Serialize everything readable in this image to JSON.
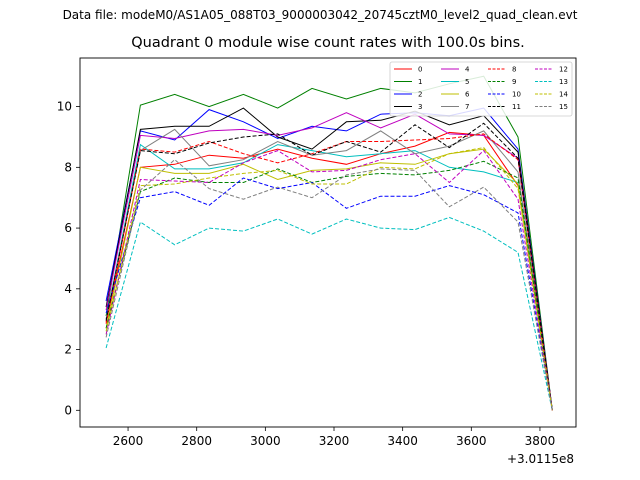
{
  "header": {
    "suptitle": "Data file: modeM0/AS1A05_088T03_9000003042_20745cztM0_level2_quad_clean.evt"
  },
  "chart_data": {
    "type": "line",
    "title": "Quadrant 0 module wise count rates with 100.0s bins.",
    "xlabel": "",
    "ylabel": "",
    "x_offset_label": "+3.0115e8",
    "xlim": [
      2460,
      3905
    ],
    "ylim": [
      -0.55,
      11.6
    ],
    "xticks": [
      2600,
      2800,
      3000,
      3200,
      3400,
      3600,
      3800
    ],
    "yticks": [
      0,
      2,
      4,
      6,
      8,
      10
    ],
    "grid": false,
    "legend_placement": "top-right",
    "x": [
      2536,
      2636,
      2736,
      2836,
      2936,
      3036,
      3136,
      3236,
      3336,
      3436,
      3536,
      3636,
      3736,
      3836
    ],
    "series": [
      {
        "name": "0",
        "color": "#ff0000",
        "dash": "solid",
        "values": [
          2.9,
          8.0,
          8.1,
          8.4,
          8.3,
          8.6,
          8.3,
          8.1,
          8.45,
          8.7,
          9.15,
          9.05,
          7.4,
          0
        ]
      },
      {
        "name": "1",
        "color": "#008000",
        "dash": "solid",
        "values": [
          3.1,
          10.05,
          10.4,
          10.0,
          10.4,
          9.95,
          10.6,
          10.25,
          10.6,
          10.45,
          10.75,
          11.0,
          9.0,
          0
        ]
      },
      {
        "name": "2",
        "color": "#0000ff",
        "dash": "solid",
        "values": [
          3.6,
          9.2,
          8.9,
          9.9,
          9.5,
          8.95,
          9.35,
          9.2,
          9.75,
          9.8,
          9.7,
          9.95,
          8.6,
          0
        ]
      },
      {
        "name": "3",
        "color": "#000000",
        "dash": "solid",
        "values": [
          3.4,
          9.25,
          9.35,
          9.35,
          9.95,
          9.0,
          8.6,
          9.5,
          9.55,
          9.85,
          9.4,
          9.7,
          8.5,
          0
        ]
      },
      {
        "name": "4",
        "color": "#bf00bf",
        "dash": "solid",
        "values": [
          3.3,
          9.05,
          8.95,
          9.2,
          9.25,
          9.05,
          9.3,
          9.8,
          9.3,
          9.75,
          9.1,
          9.05,
          8.3,
          0
        ]
      },
      {
        "name": "5",
        "color": "#00bfbf",
        "dash": "solid",
        "values": [
          3.0,
          8.75,
          7.95,
          7.95,
          8.15,
          8.75,
          8.55,
          8.35,
          8.45,
          8.55,
          8.0,
          7.85,
          7.5,
          0
        ]
      },
      {
        "name": "6",
        "color": "#bfbf00",
        "dash": "solid",
        "values": [
          2.7,
          8.0,
          7.8,
          7.8,
          8.1,
          7.6,
          7.9,
          7.95,
          8.15,
          8.1,
          8.45,
          8.6,
          7.45,
          0
        ]
      },
      {
        "name": "7",
        "color": "#808080",
        "dash": "solid",
        "values": [
          3.0,
          8.55,
          9.25,
          8.05,
          8.25,
          8.85,
          8.4,
          8.55,
          9.2,
          8.45,
          8.7,
          9.2,
          7.85,
          0
        ]
      },
      {
        "name": "8",
        "color": "#ff0000",
        "dash": "dashed",
        "values": [
          2.85,
          8.6,
          8.5,
          8.85,
          8.45,
          8.15,
          8.45,
          8.85,
          8.85,
          8.9,
          8.95,
          9.1,
          8.25,
          0
        ]
      },
      {
        "name": "9",
        "color": "#008000",
        "dash": "dashed",
        "values": [
          2.7,
          7.2,
          7.65,
          7.5,
          7.5,
          7.95,
          7.5,
          7.7,
          7.8,
          7.75,
          7.9,
          8.2,
          7.65,
          0
        ]
      },
      {
        "name": "10",
        "color": "#0000ff",
        "dash": "dashed",
        "values": [
          3.2,
          7.0,
          7.2,
          6.75,
          7.65,
          7.3,
          7.5,
          6.65,
          7.05,
          7.05,
          7.4,
          7.1,
          6.5,
          0
        ]
      },
      {
        "name": "11",
        "color": "#000000",
        "dash": "dashed",
        "values": [
          2.95,
          8.55,
          8.45,
          8.8,
          9.0,
          9.1,
          8.4,
          8.85,
          8.5,
          9.4,
          8.65,
          9.45,
          8.3,
          0
        ]
      },
      {
        "name": "12",
        "color": "#bf00bf",
        "dash": "dashed",
        "values": [
          2.5,
          7.6,
          7.55,
          7.5,
          8.15,
          8.55,
          7.85,
          7.9,
          8.25,
          8.45,
          7.5,
          8.55,
          6.95,
          0
        ]
      },
      {
        "name": "13",
        "color": "#00bfbf",
        "dash": "dashed",
        "values": [
          2.05,
          6.2,
          5.45,
          6.0,
          5.9,
          6.3,
          5.8,
          6.3,
          6.0,
          5.95,
          6.35,
          5.9,
          5.2,
          0
        ]
      },
      {
        "name": "14",
        "color": "#bfbf00",
        "dash": "dashed",
        "values": [
          2.6,
          7.4,
          7.45,
          7.65,
          7.8,
          7.9,
          7.45,
          7.45,
          8.0,
          7.95,
          8.45,
          8.65,
          7.3,
          0
        ]
      },
      {
        "name": "15",
        "color": "#808080",
        "dash": "dashed",
        "values": [
          2.4,
          7.25,
          8.25,
          7.3,
          6.95,
          7.35,
          7.0,
          7.75,
          7.95,
          7.9,
          6.7,
          7.35,
          6.2,
          0
        ]
      }
    ]
  }
}
